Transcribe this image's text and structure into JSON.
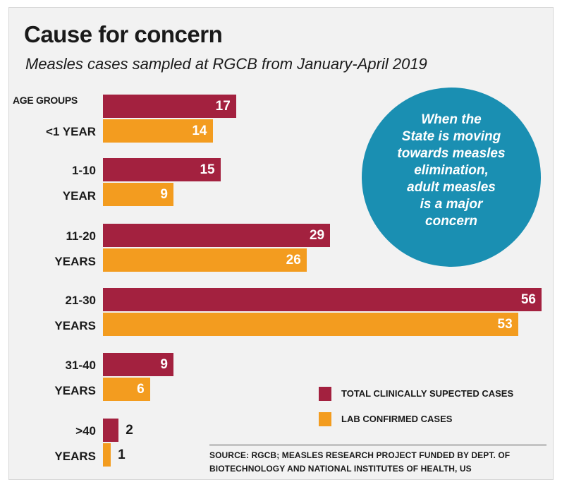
{
  "title": "Cause for concern",
  "subtitle": "Measles cases sampled at RGCB from January-April 2019",
  "age_groups_header": "AGE GROUPS",
  "callout": {
    "lines": [
      "When the",
      "State is moving",
      "towards measles",
      "elimination,",
      "adult measles",
      "is a major",
      "concern"
    ],
    "color": "#1a8fb2"
  },
  "legend": [
    {
      "label": "TOTAL CLINICALLY SUPECTED CASES",
      "color": "#a3213f"
    },
    {
      "label": "LAB CONFIRMED CASES",
      "color": "#f39c1f"
    }
  ],
  "source": {
    "line1": "SOURCE: RGCB; MEASLES RESEARCH PROJECT FUNDED BY DEPT. OF",
    "line2": "BIOTECHNOLOGY AND NATIONAL INSTITUTES OF HEALTH, US"
  },
  "chart_data": {
    "type": "bar",
    "orientation": "horizontal",
    "title": "Cause for concern",
    "subtitle": "Measles cases sampled at RGCB from January-April 2019",
    "categories": [
      [
        "<1 YEAR"
      ],
      [
        "1-10",
        "YEAR"
      ],
      [
        "11-20",
        "YEARS"
      ],
      [
        "21-30",
        "YEARS"
      ],
      [
        "31-40",
        "YEARS"
      ],
      [
        ">40",
        "YEARS"
      ]
    ],
    "series": [
      {
        "name": "TOTAL CLINICALLY SUPECTED CASES",
        "color": "#a3213f",
        "values": [
          17,
          15,
          29,
          56,
          9,
          2
        ]
      },
      {
        "name": "LAB CONFIRMED CASES",
        "color": "#f39c1f",
        "values": [
          14,
          9,
          26,
          53,
          6,
          1
        ]
      }
    ],
    "xlim": [
      0,
      56
    ],
    "grid": false,
    "legend_position": "bottom-right"
  }
}
